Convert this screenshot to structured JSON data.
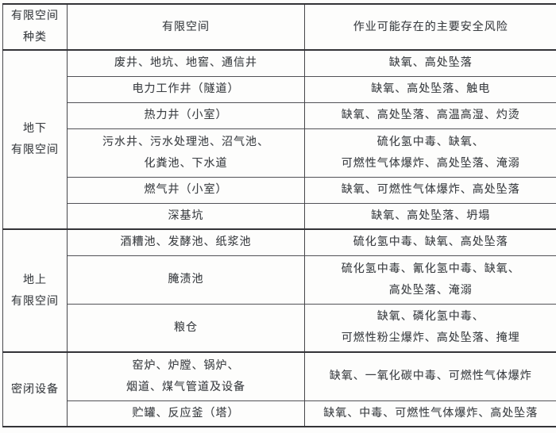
{
  "table": {
    "header": {
      "col1_lines": [
        "有限空间",
        "种类"
      ],
      "col2": "有限空间",
      "col3": "作业可能存在的主要安全风险"
    },
    "groups": [
      {
        "label_lines": [
          "地下",
          "有限空间"
        ],
        "rows": [
          {
            "space": [
              "废井、地坑、地窖、通信井"
            ],
            "risk": [
              "缺氧、高处坠落"
            ]
          },
          {
            "space": [
              "电力工作井（隧道）"
            ],
            "risk": [
              "缺氧、高处坠落、触电"
            ]
          },
          {
            "space": [
              "热力井（小室）"
            ],
            "risk": [
              "缺氧、高处坠落、高温高湿、灼烫"
            ]
          },
          {
            "space": [
              "污水井、污水处理池、沼气池、",
              "化粪池、下水道"
            ],
            "risk": [
              "硫化氢中毒、缺氧、",
              "可燃性气体爆炸、高处坠落、淹溺"
            ]
          },
          {
            "space": [
              "燃气井（小室）"
            ],
            "risk": [
              "缺氧、可燃性气体爆炸、高处坠落"
            ]
          },
          {
            "space": [
              "深基坑"
            ],
            "risk": [
              "缺氧、高处坠落、坍塌"
            ]
          }
        ]
      },
      {
        "label_lines": [
          "地上",
          "有限空间"
        ],
        "rows": [
          {
            "space": [
              "酒糟池、发酵池、纸浆池"
            ],
            "risk": [
              "硫化氢中毒、缺氧、高处坠落"
            ]
          },
          {
            "space": [
              "腌渍池"
            ],
            "risk": [
              "硫化氢中毒、氰化氢中毒、缺氧、",
              "高处坠落、淹溺"
            ]
          },
          {
            "space": [
              "粮仓"
            ],
            "risk": [
              "缺氧、磷化氢中毒、",
              "可燃性粉尘爆炸、高处坠落、掩埋"
            ]
          }
        ]
      },
      {
        "label_lines": [
          "密闭设备"
        ],
        "rows": [
          {
            "space": [
              "窑炉、炉膛、锅炉、",
              "烟道、煤气管道及设备"
            ],
            "risk": [
              "缺氧、一氧化碳中毒、可燃性气体爆炸"
            ]
          },
          {
            "space": [
              "贮罐、反应釜（塔）"
            ],
            "risk": [
              "缺氧、中毒、可燃性气体爆炸、高处坠落"
            ]
          }
        ]
      }
    ]
  }
}
